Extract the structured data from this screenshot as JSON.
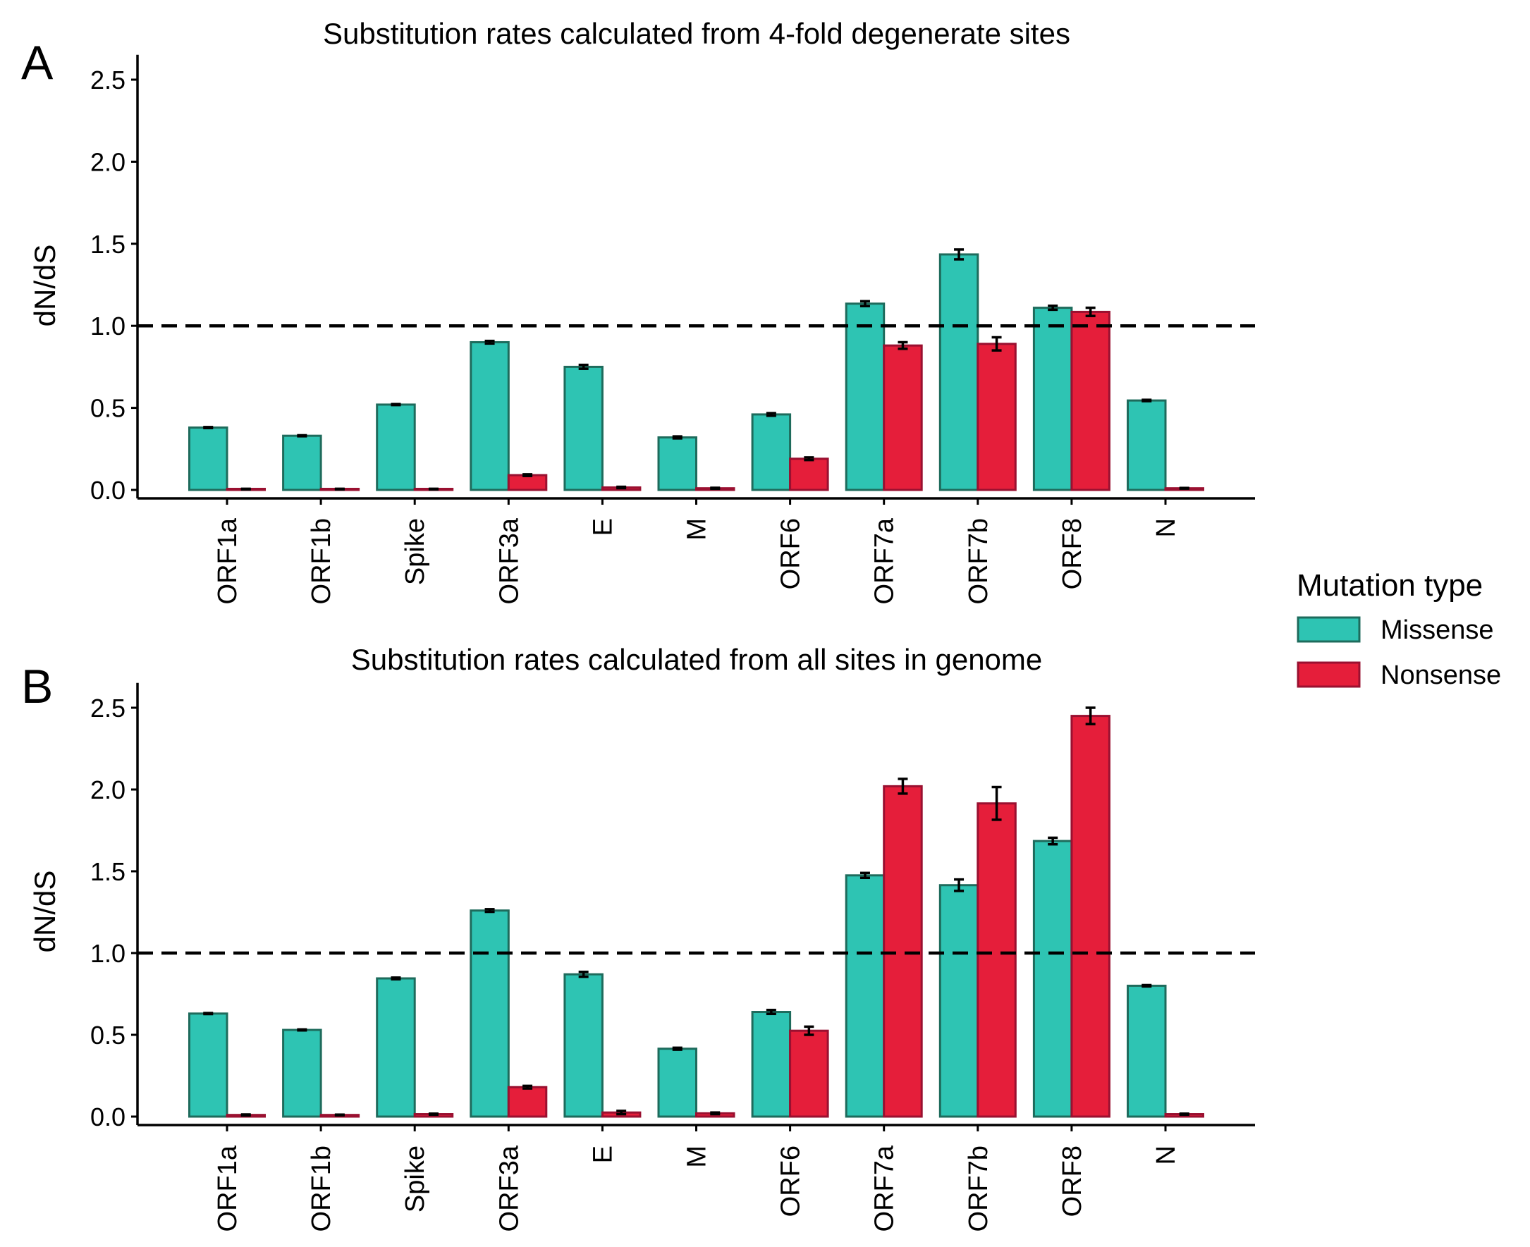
{
  "legend": {
    "title": "Mutation type",
    "placement": "right",
    "entries": [
      {
        "label": "Missense",
        "color": "#2EC4B3",
        "border": "#1E6B5C"
      },
      {
        "label": "Nonsense",
        "color": "#E51E3A",
        "border": "#9A1030"
      }
    ]
  },
  "reference_line": {
    "y": 1.0,
    "style": "dashed"
  },
  "chart_data": [
    {
      "panel": "A",
      "type": "bar",
      "title": "Substitution rates calculated from 4-fold degenerate sites",
      "xlabel": "",
      "ylabel": "dN/dS",
      "ylim": [
        0,
        2.6
      ],
      "yticks": [
        "0.0",
        "0.5",
        "1.0",
        "1.5",
        "2.0",
        "2.5"
      ],
      "categories": [
        "ORF1a",
        "ORF1b",
        "Spike",
        "ORF3a",
        "E",
        "M",
        "ORF6",
        "ORF7a",
        "ORF7b",
        "ORF8",
        "N"
      ],
      "series": [
        {
          "name": "Missense",
          "values": [
            0.38,
            0.33,
            0.52,
            0.9,
            0.75,
            0.32,
            0.46,
            1.135,
            1.435,
            1.11,
            0.545
          ],
          "errors": [
            0.003,
            0.003,
            0.003,
            0.008,
            0.012,
            0.006,
            0.008,
            0.015,
            0.03,
            0.012,
            0.004
          ]
        },
        {
          "name": "Nonsense",
          "values": [
            0.005,
            0.005,
            0.005,
            0.09,
            0.015,
            0.01,
            0.19,
            0.88,
            0.89,
            1.085,
            0.01
          ],
          "errors": [
            0.002,
            0.002,
            0.002,
            0.005,
            0.004,
            0.003,
            0.008,
            0.02,
            0.04,
            0.025,
            0.002
          ]
        }
      ],
      "grid": false,
      "legend": "right"
    },
    {
      "panel": "B",
      "type": "bar",
      "title": "Substitution rates calculated from all sites in genome",
      "xlabel": "",
      "ylabel": "dN/dS",
      "ylim": [
        0,
        2.6
      ],
      "yticks": [
        "0.0",
        "0.5",
        "1.0",
        "1.5",
        "2.0",
        "2.5"
      ],
      "categories": [
        "ORF1a",
        "ORF1b",
        "Spike",
        "ORF3a",
        "E",
        "M",
        "ORF6",
        "ORF7a",
        "ORF7b",
        "ORF8",
        "N"
      ],
      "series": [
        {
          "name": "Missense",
          "values": [
            0.63,
            0.53,
            0.845,
            1.26,
            0.87,
            0.415,
            0.64,
            1.475,
            1.415,
            1.685,
            0.8
          ],
          "errors": [
            0.003,
            0.003,
            0.005,
            0.008,
            0.015,
            0.006,
            0.012,
            0.015,
            0.035,
            0.02,
            0.004
          ]
        },
        {
          "name": "Nonsense",
          "values": [
            0.01,
            0.01,
            0.015,
            0.18,
            0.025,
            0.02,
            0.525,
            2.02,
            1.915,
            2.45,
            0.015
          ],
          "errors": [
            0.003,
            0.002,
            0.003,
            0.008,
            0.01,
            0.005,
            0.025,
            0.045,
            0.1,
            0.05,
            0.003
          ]
        }
      ],
      "grid": false,
      "legend": "right"
    }
  ]
}
